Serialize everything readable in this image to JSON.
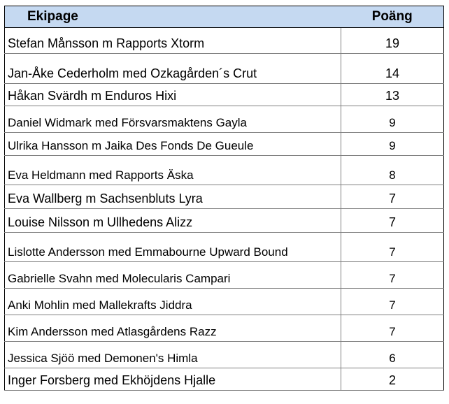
{
  "table": {
    "header": {
      "name": "Ekipage",
      "score": "Poäng"
    },
    "rows": [
      {
        "name": "Stefan Månsson m Rapports Xtorm",
        "score": "19"
      },
      {
        "name": "Jan-Åke Cederholm med Ozkagården´s Crut",
        "score": "14"
      },
      {
        "name": "Håkan Svärdh m Enduros Hixi",
        "score": "13"
      },
      {
        "name": "Daniel Widmark med Försvarsmaktens Gayla",
        "score": "9"
      },
      {
        "name": "Ulrika Hansson m Jaika Des Fonds De Gueule",
        "score": "9"
      },
      {
        "name": "Eva Heldmann med Rapports Äska",
        "score": "8"
      },
      {
        "name": "Eva Wallberg m Sachsenbluts Lyra",
        "score": "7"
      },
      {
        "name": "Louise Nilsson m Ullhedens Alizz",
        "score": "7"
      },
      {
        "name": "Lislotte Andersson med Emmabourne Upward Bound",
        "score": "7"
      },
      {
        "name": "Gabrielle Svahn med Molecularis Campari",
        "score": "7"
      },
      {
        "name": "Anki Mohlin med Mallekrafts Jiddra",
        "score": "7"
      },
      {
        "name": "Kim Andersson med Atlasgårdens Razz",
        "score": "7"
      },
      {
        "name": "Jessica Sjöö med Demonen's Himla",
        "score": "6"
      },
      {
        "name": "Inger Forsberg med Ekhöjdens Hjalle",
        "score": "2"
      }
    ]
  },
  "colors": {
    "header_bg": "#c5d9f1",
    "grid": "#7f7f7f",
    "border": "#000000"
  }
}
